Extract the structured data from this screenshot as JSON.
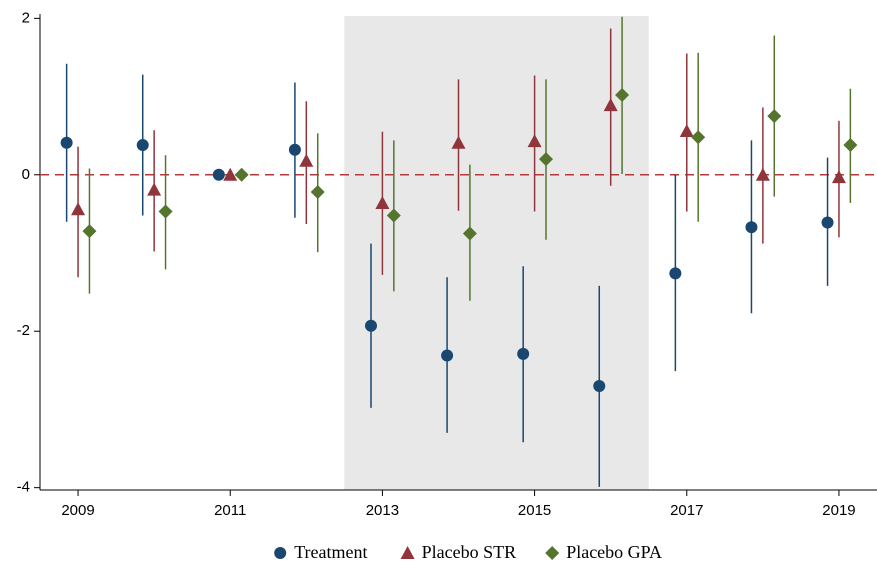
{
  "chart_data": {
    "type": "errorbar",
    "x": [
      2009,
      2010,
      2011,
      2012,
      2013,
      2014,
      2015,
      2016,
      2017,
      2018,
      2019
    ],
    "xlim": [
      2008.5,
      2019.5
    ],
    "xticks": [
      2009,
      2011,
      2013,
      2015,
      2017,
      2019
    ],
    "ylim": [
      -4.03,
      2.03
    ],
    "yticks": [
      2,
      0,
      -2,
      -4
    ],
    "shaded_region": [
      2012.5,
      2016.5
    ],
    "hline": 0,
    "hline_color": "#b23a3a",
    "legend": "bottom",
    "series": [
      {
        "name": "Treatment",
        "color": "#1a476f",
        "marker": "circle",
        "values": [
          0.41,
          0.38,
          0,
          0.32,
          -1.93,
          -2.31,
          -2.29,
          -2.7,
          -1.26,
          -0.67,
          -0.61
        ],
        "lower": [
          -0.6,
          -0.52,
          null,
          -0.55,
          -2.98,
          -3.3,
          -3.42,
          -3.99,
          -2.51,
          -1.77,
          -1.42
        ],
        "upper": [
          1.42,
          1.28,
          null,
          1.18,
          -0.88,
          -1.31,
          -1.17,
          -1.42,
          0,
          0.44,
          0.22
        ]
      },
      {
        "name": "Placebo STR",
        "color": "#90353b",
        "marker": "triangle",
        "values": [
          -0.44,
          -0.19,
          0,
          0.18,
          -0.36,
          0.41,
          0.43,
          0.89,
          0.56,
          0,
          -0.03
        ],
        "lower": [
          -1.31,
          -0.98,
          null,
          -0.63,
          -1.28,
          -0.46,
          -0.47,
          -0.14,
          -0.47,
          -0.88,
          -0.8
        ],
        "upper": [
          0.36,
          0.57,
          null,
          0.94,
          0.55,
          1.22,
          1.27,
          1.87,
          1.55,
          0.86,
          0.69
        ]
      },
      {
        "name": "Placebo GPA",
        "color": "#55752f",
        "marker": "diamond",
        "values": [
          -0.72,
          -0.47,
          0,
          -0.22,
          -0.52,
          -0.75,
          0.2,
          1.02,
          0.48,
          0.75,
          0.38
        ],
        "lower": [
          -1.52,
          -1.21,
          null,
          -0.99,
          -1.49,
          -1.61,
          -0.83,
          0.01,
          -0.6,
          -0.28,
          -0.36
        ],
        "upper": [
          0.08,
          0.25,
          null,
          0.53,
          0.44,
          0.13,
          1.22,
          2.02,
          1.56,
          1.78,
          1.1
        ]
      }
    ]
  }
}
